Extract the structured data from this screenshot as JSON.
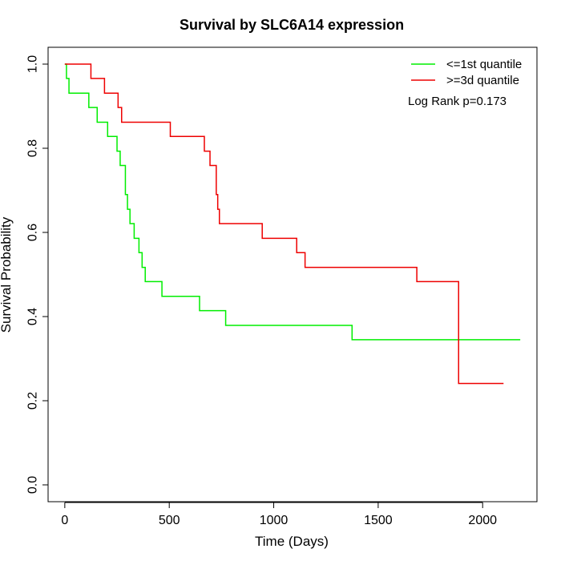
{
  "chart_data": {
    "type": "line",
    "title": "Survival by SLC6A14 expression",
    "xlabel": "Time (Days)",
    "ylabel": "Survival Probability",
    "xlim": [
      -80,
      2260
    ],
    "ylim": [
      -0.04,
      1.04
    ],
    "x_ticks": [
      0,
      500,
      1000,
      1500,
      2000
    ],
    "x_tick_labels": [
      "0",
      "500",
      "1000",
      "1500",
      "2000"
    ],
    "y_ticks": [
      0.0,
      0.2,
      0.4,
      0.6,
      0.8,
      1.0
    ],
    "y_tick_labels": [
      "0.0",
      "0.2",
      "0.4",
      "0.6",
      "0.8",
      "1.0"
    ],
    "legend_position": "top-right",
    "annotation": "Log Rank p=0.173",
    "grid": false,
    "series": [
      {
        "name": "<=1st quantile",
        "color": "#00ee00",
        "step": true,
        "x": [
          0,
          8,
          20,
          115,
          155,
          205,
          250,
          265,
          290,
          300,
          312,
          332,
          355,
          370,
          385,
          395,
          465,
          645,
          770,
          1375,
          2180
        ],
        "y": [
          1.0,
          0.966,
          0.931,
          0.897,
          0.862,
          0.828,
          0.793,
          0.759,
          0.69,
          0.655,
          0.621,
          0.586,
          0.552,
          0.517,
          0.483,
          0.483,
          0.448,
          0.414,
          0.379,
          0.345,
          0.345
        ]
      },
      {
        "name": ">=3d quantile",
        "color": "#ee0000",
        "step": true,
        "x": [
          0,
          125,
          190,
          255,
          272,
          505,
          668,
          695,
          725,
          732,
          740,
          945,
          1110,
          1150,
          1685,
          1885,
          2100
        ],
        "y": [
          1.0,
          0.966,
          0.931,
          0.897,
          0.862,
          0.828,
          0.793,
          0.759,
          0.69,
          0.655,
          0.621,
          0.586,
          0.552,
          0.517,
          0.483,
          0.241,
          0.241
        ]
      }
    ]
  }
}
